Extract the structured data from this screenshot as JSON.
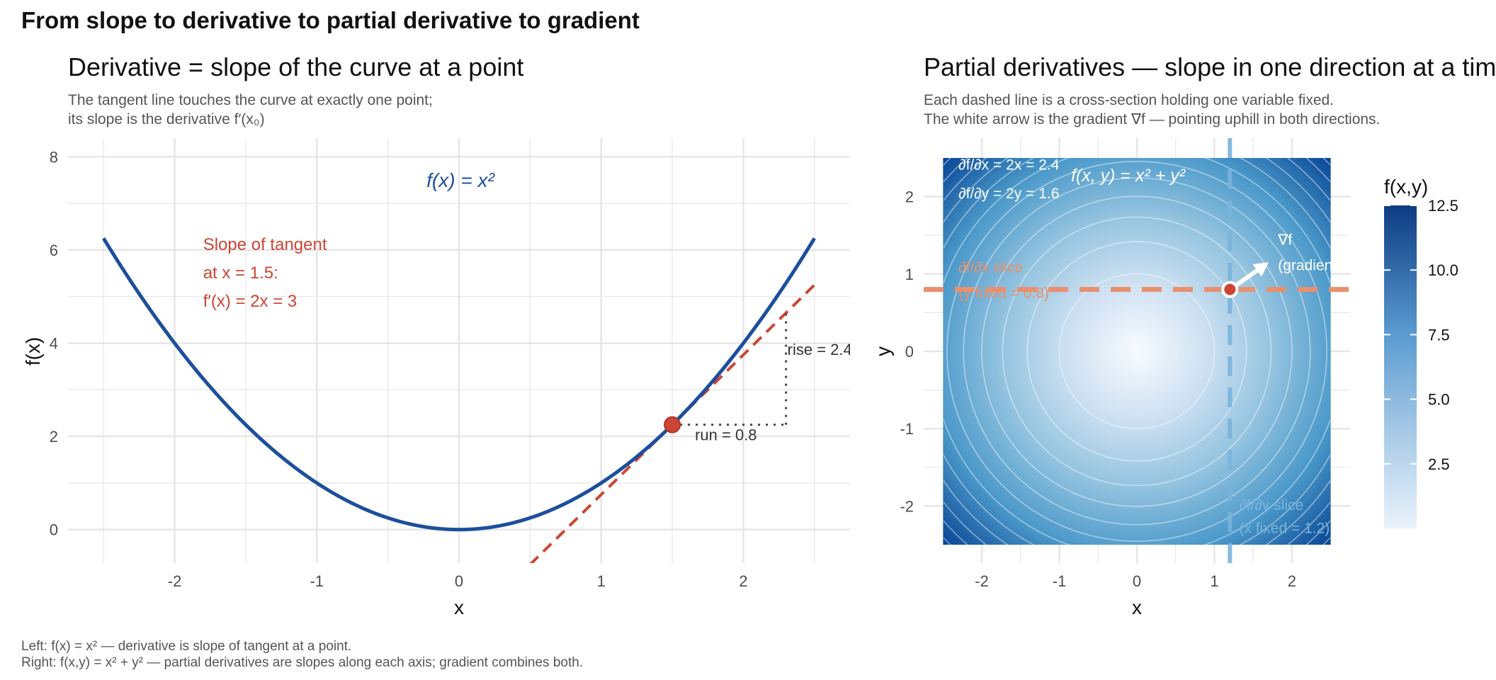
{
  "figure": {
    "title": "From slope to derivative to partial derivative to gradient",
    "caption_lines": [
      "Left: f(x) = x² — derivative is slope of tangent at a point.",
      "Right: f(x,y) = x² + y² — partial derivatives are slopes along each axis; gradient combines both."
    ]
  },
  "colors": {
    "curve": "#1c4f9c",
    "tangent": "#cd4635",
    "slice_x": "#e8906e",
    "slice_y": "#7ab4dc",
    "grid": "#e6e6e6"
  },
  "chart_data": [
    {
      "type": "line",
      "title": "Derivative = slope of the curve at a point",
      "subtitle_lines": [
        "The tangent line touches the curve at exactly one point;",
        "its slope is the derivative f′(x₀)"
      ],
      "xlabel": "x",
      "ylabel": "f(x)",
      "xlim": [
        -2.75,
        2.75
      ],
      "ylim": [
        -0.72,
        8.4
      ],
      "x_ticks": [
        -2,
        -1,
        0,
        1,
        2
      ],
      "y_ticks": [
        0,
        2,
        4,
        6,
        8
      ],
      "grid": true,
      "curve": {
        "label": "f(x) = x²",
        "label_at": [
          0,
          7.5
        ],
        "x_range": [
          -2.5,
          2.5
        ]
      },
      "tangent": {
        "point": [
          1.5,
          2.25
        ],
        "slope": 3,
        "x_range": [
          0.5,
          2.5
        ]
      },
      "run": {
        "from_x": 1.5,
        "to_x": 2.3,
        "y": 2.25,
        "label": "run = 0.8"
      },
      "rise": {
        "x": 2.3,
        "from_y": 2.25,
        "to_y": 4.65,
        "label": "rise = 2.4"
      },
      "annotation_lines": [
        "Slope of tangent",
        "at x = 1.5:",
        "f′(x) = 2x = 3"
      ],
      "annotation_at": [
        -1.8,
        6.0
      ]
    },
    {
      "type": "heatmap",
      "title": "Partial derivatives — slope in one direction at a time",
      "subtitle_lines": [
        "Each dashed line is a cross-section holding one variable fixed.",
        "The white arrow is the gradient ∇f — pointing uphill in both directions."
      ],
      "xlabel": "x",
      "ylabel": "y",
      "xlim": [
        -2.75,
        2.75
      ],
      "ylim": [
        -2.5,
        2.5
      ],
      "x_ticks": [
        -2,
        -1,
        0,
        1,
        2
      ],
      "y_ticks": [
        -2,
        -1,
        0,
        1,
        2
      ],
      "domain": [
        -2.5,
        2.5
      ],
      "contour_levels": [
        1,
        2,
        3,
        4,
        5,
        6,
        7,
        8,
        9,
        10,
        11,
        12
      ],
      "point": [
        1.2,
        0.8
      ],
      "gradient_arrow_to": [
        1.7,
        1.15
      ],
      "gradient_label_lines": [
        "∇f",
        "(gradient)"
      ],
      "surface_label": "f(x, y) = x² + y²",
      "partials_lines": [
        "∂f/∂x = 2x = 2.4",
        "∂f/∂y = 2y = 1.6"
      ],
      "slice_x_label_lines": [
        "∂f/∂x slice",
        "(y fixed = 0.8)"
      ],
      "slice_y_label_lines": [
        "∂f/∂y slice",
        "(x fixed = 1.2)"
      ],
      "legend": {
        "title": "f(x,y)",
        "placement": "right",
        "range": [
          0,
          12.5
        ],
        "ticks": [
          2.5,
          5.0,
          7.5,
          10.0,
          12.5
        ],
        "tick_labels": [
          "2.5",
          "5.0",
          "7.5",
          "10.0",
          "12.5"
        ]
      }
    }
  ]
}
